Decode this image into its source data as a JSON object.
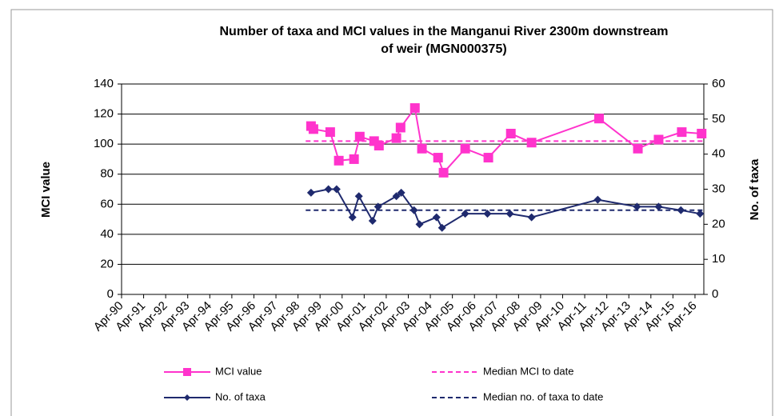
{
  "chart_data": {
    "type": "line",
    "title": [
      "Number of taxa and MCI values in the Manganui River 2300m downstream",
      "of weir (MGN000375)"
    ],
    "ylabel": "MCI value",
    "y2label": "No. of taxa",
    "xlim": [
      1990.25,
      2016.65
    ],
    "xticks": [
      {
        "value": 1990.25,
        "label": "Apr-90"
      },
      {
        "value": 1991.25,
        "label": "Apr-91"
      },
      {
        "value": 1992.25,
        "label": "Apr-92"
      },
      {
        "value": 1993.25,
        "label": "Apr-93"
      },
      {
        "value": 1994.25,
        "label": "Apr-94"
      },
      {
        "value": 1995.25,
        "label": "Apr-95"
      },
      {
        "value": 1996.25,
        "label": "Apr-96"
      },
      {
        "value": 1997.25,
        "label": "Apr-97"
      },
      {
        "value": 1998.25,
        "label": "Apr-98"
      },
      {
        "value": 1999.25,
        "label": "Apr-99"
      },
      {
        "value": 2000.25,
        "label": "Apr-00"
      },
      {
        "value": 2001.25,
        "label": "Apr-01"
      },
      {
        "value": 2002.25,
        "label": "Apr-02"
      },
      {
        "value": 2003.25,
        "label": "Apr-03"
      },
      {
        "value": 2004.25,
        "label": "Apr-04"
      },
      {
        "value": 2005.25,
        "label": "Apr-05"
      },
      {
        "value": 2006.25,
        "label": "Apr-06"
      },
      {
        "value": 2007.25,
        "label": "Apr-07"
      },
      {
        "value": 2008.25,
        "label": "Apr-08"
      },
      {
        "value": 2009.25,
        "label": "Apr-09"
      },
      {
        "value": 2010.25,
        "label": "Apr-10"
      },
      {
        "value": 2011.25,
        "label": "Apr-11"
      },
      {
        "value": 2012.25,
        "label": "Apr-12"
      },
      {
        "value": 2013.25,
        "label": "Apr-13"
      },
      {
        "value": 2014.25,
        "label": "Apr-14"
      },
      {
        "value": 2015.25,
        "label": "Apr-15"
      },
      {
        "value": 2016.25,
        "label": "Apr-16"
      }
    ],
    "ylim": [
      0,
      140
    ],
    "yticks": [
      0,
      20,
      40,
      60,
      80,
      100,
      120,
      140
    ],
    "y2lim": [
      0,
      60
    ],
    "y2ticks": [
      0,
      10,
      20,
      30,
      40,
      50,
      60
    ],
    "grid": true,
    "series": [
      {
        "name": "MCI value",
        "color": "#ff33cc",
        "marker": "square",
        "axis": "y",
        "x": [
          1998.84,
          1998.95,
          1999.71,
          2000.1,
          2000.79,
          2001.05,
          2001.7,
          2001.92,
          2002.71,
          2002.9,
          2003.55,
          2003.87,
          2004.6,
          2004.85,
          2005.83,
          2006.88,
          2007.9,
          2008.84,
          2011.9,
          2013.66,
          2014.6,
          2015.65,
          2016.55
        ],
        "values": [
          112,
          110,
          108,
          89,
          90,
          105,
          102,
          99,
          104,
          111,
          124,
          97,
          91,
          81,
          97,
          91,
          107,
          101,
          117,
          97,
          103,
          108,
          107
        ]
      },
      {
        "name": "Median MCI to date",
        "color": "#ff33cc",
        "dashed": true,
        "axis": "y",
        "x": [
          1998.6,
          2016.65
        ],
        "values": [
          102,
          102
        ]
      },
      {
        "name": "No. of taxa",
        "color": "#1f2a6e",
        "marker": "diamond",
        "axis": "y2",
        "x": [
          1998.84,
          1999.63,
          2000.0,
          2000.72,
          2001.01,
          2001.63,
          2001.88,
          2002.71,
          2002.93,
          2003.51,
          2003.76,
          2004.53,
          2004.78,
          2005.83,
          2006.84,
          2007.86,
          2008.84,
          2011.84,
          2013.62,
          2014.6,
          2015.61,
          2016.48
        ],
        "values": [
          29,
          30,
          30,
          22,
          28,
          21,
          25,
          28,
          29,
          24,
          20,
          22,
          19,
          23,
          23,
          23,
          22,
          27,
          25,
          25,
          24,
          23
        ]
      },
      {
        "name": "Median no. of taxa to date",
        "color": "#1f2a6e",
        "dashed": true,
        "axis": "y2",
        "x": [
          1998.6,
          2016.65
        ],
        "values": [
          24,
          24
        ]
      }
    ]
  }
}
